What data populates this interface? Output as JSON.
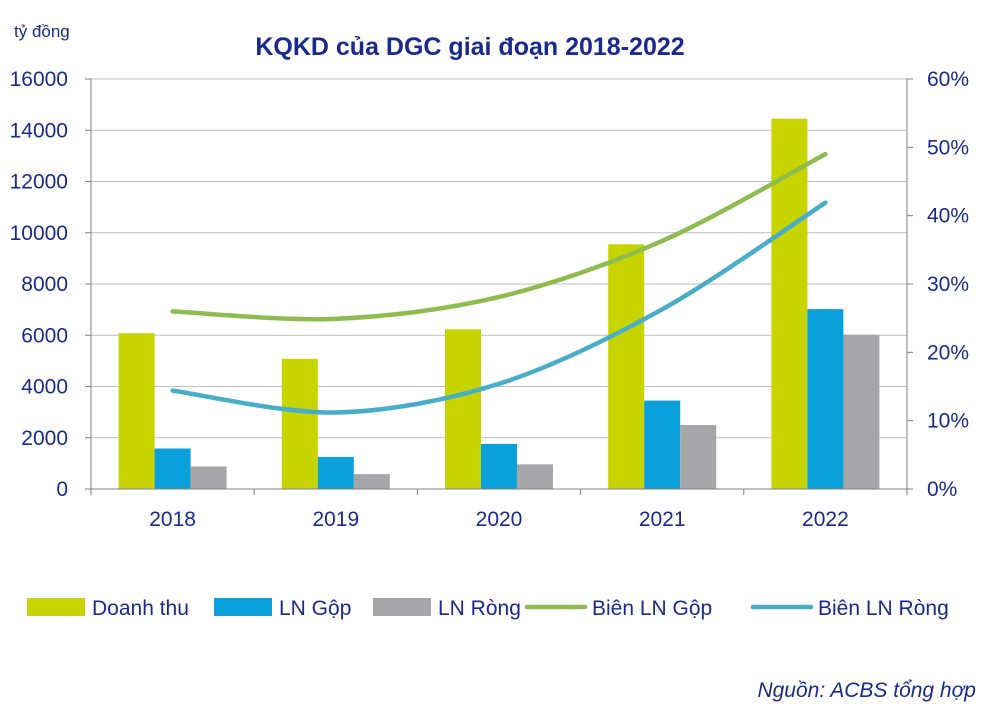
{
  "chart_data": {
    "type": "bar",
    "title": "KQKD của DGC giai đoạn 2018-2022",
    "unit_label": "tỷ đồng",
    "categories": [
      "2018",
      "2019",
      "2020",
      "2021",
      "2022"
    ],
    "series": [
      {
        "name": "Doanh thu",
        "kind": "bar",
        "axis": "left",
        "color": "#c8d400",
        "values": [
          6080,
          5080,
          6230,
          9550,
          14450
        ]
      },
      {
        "name": "LN Gộp",
        "kind": "bar",
        "axis": "left",
        "color": "#0aa0dc",
        "values": [
          1580,
          1250,
          1760,
          3450,
          7020
        ]
      },
      {
        "name": "LN Ròng",
        "kind": "bar",
        "axis": "left",
        "color": "#a6a6a8",
        "values": [
          880,
          580,
          960,
          2500,
          6020
        ]
      },
      {
        "name": "Biên LN Gộp",
        "kind": "line",
        "axis": "right",
        "color": "#8fbc4f",
        "values": [
          0.26,
          0.249,
          0.281,
          0.363,
          0.49
        ]
      },
      {
        "name": "Biên LN Ròng",
        "kind": "line",
        "axis": "right",
        "color": "#48aec8",
        "values": [
          0.144,
          0.112,
          0.154,
          0.263,
          0.419
        ]
      }
    ],
    "y_left": {
      "min": 0,
      "max": 16000,
      "ticks": [
        "0",
        "2000",
        "4000",
        "6000",
        "8000",
        "10000",
        "12000",
        "14000",
        "16000"
      ]
    },
    "y_right": {
      "min": 0,
      "max": 0.6,
      "ticks": [
        "0%",
        "10%",
        "20%",
        "30%",
        "40%",
        "50%",
        "60%"
      ]
    },
    "grid": true,
    "grid_color": "#bfbfbf",
    "legend_position": "bottom",
    "source": "Nguồn: ACBS tổng hợp"
  }
}
